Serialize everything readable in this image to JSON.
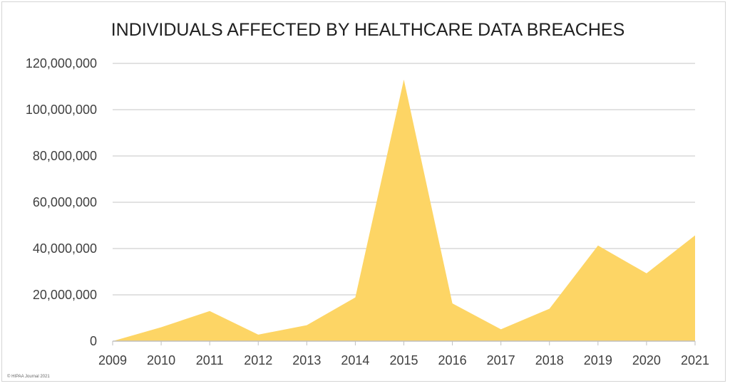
{
  "chart_data": {
    "type": "area",
    "title": "INDIVIDUALS AFFECTED BY HEALTHCARE DATA BREACHES",
    "xlabel": "",
    "ylabel": "",
    "x": [
      "2009",
      "2010",
      "2011",
      "2012",
      "2013",
      "2014",
      "2015",
      "2016",
      "2017",
      "2018",
      "2019",
      "2020",
      "2021"
    ],
    "values": [
      0,
      6000000,
      13000000,
      2800000,
      6900000,
      18900000,
      113000000,
      16300000,
      5100000,
      14000000,
      41300000,
      29300000,
      45700000
    ],
    "ylim": [
      0,
      120000000
    ],
    "y_ticks": [
      0,
      20000000,
      40000000,
      60000000,
      80000000,
      100000000,
      120000000
    ],
    "y_tick_labels": [
      "0",
      "20,000,000",
      "40,000,000",
      "60,000,000",
      "80,000,000",
      "100,000,000",
      "120,000,000"
    ],
    "grid": true,
    "legend": "none",
    "colors": {
      "area": "#fdd565",
      "grid": "#d9d9d9",
      "axis": "#bfbfbf",
      "text": "#404040"
    }
  },
  "credit": "© HIPAA Journal 2021"
}
